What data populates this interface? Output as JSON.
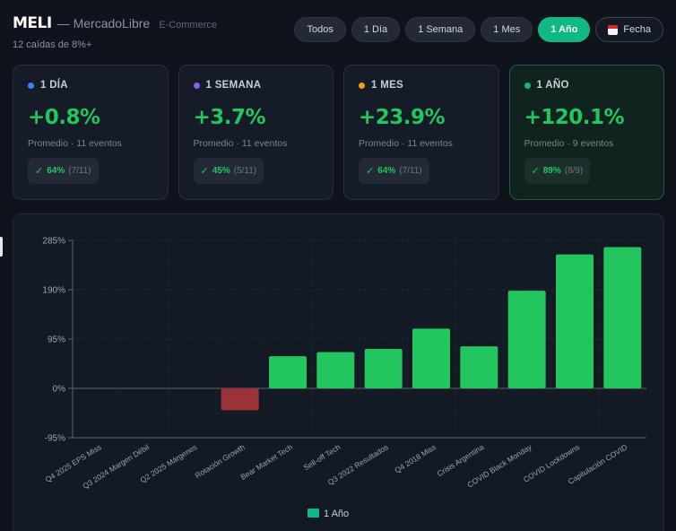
{
  "header": {
    "ticker": "MELI",
    "company": "— MercadoLibre",
    "sector": "E-Commerce",
    "subtitle": "12 caídas de 8%+"
  },
  "filters": [
    {
      "label": "Todos",
      "active": false
    },
    {
      "label": "1 Día",
      "active": false
    },
    {
      "label": "1 Semana",
      "active": false
    },
    {
      "label": "1 Mes",
      "active": false
    },
    {
      "label": "1 Año",
      "active": true
    },
    {
      "label": "Fecha",
      "active": false,
      "icon": "calendar-icon"
    }
  ],
  "cards": [
    {
      "label": "1 DÍA",
      "dot_color": "#3b82f6",
      "value": "+0.8%",
      "avg": "Promedio · 11 eventos",
      "check": "✓",
      "rate": "64%",
      "frac": "(7/11)",
      "highlight": false
    },
    {
      "label": "1 SEMANA",
      "dot_color": "#8b5cf6",
      "value": "+3.7%",
      "avg": "Promedio · 11 eventos",
      "check": "✓",
      "rate": "45%",
      "frac": "(5/11)",
      "highlight": false
    },
    {
      "label": "1 MES",
      "dot_color": "#f59e0b",
      "value": "+23.9%",
      "avg": "Promedio · 11 eventos",
      "check": "✓",
      "rate": "64%",
      "frac": "(7/11)",
      "highlight": false
    },
    {
      "label": "1 AÑO",
      "dot_color": "#10b981",
      "value": "+120.1%",
      "avg": "Promedio · 9 eventos",
      "check": "✓",
      "rate": "89%",
      "frac": "(8/9)",
      "highlight": true
    }
  ],
  "colors": {
    "positive": "#22c55e",
    "negative": "#9b3237",
    "accent": "#10b981"
  },
  "chart_data": {
    "type": "bar",
    "categories": [
      "Q4 2025 EPS Miss",
      "Q3 2024 Margen Débil",
      "Q2 2025 Márgenes",
      "Rotación Growth",
      "Bear Market Tech",
      "Sell-off Tech",
      "Q3 2022 Resultados",
      "Q4 2018 Miss",
      "Crisis Argentina",
      "COVID Black Monday",
      "COVID Lockdowns",
      "Capitulación COVID"
    ],
    "series": [
      {
        "name": "1 Año",
        "values": [
          null,
          null,
          null,
          -42,
          62,
          70,
          76,
          115,
          81,
          188,
          258,
          272
        ]
      }
    ],
    "yticks": [
      "285%",
      "190%",
      "95%",
      "0%",
      "-95%"
    ],
    "ytick_values": [
      285,
      190,
      95,
      0,
      -95
    ],
    "ylim": [
      -95,
      285
    ],
    "grid": true,
    "legend": "bottom"
  }
}
